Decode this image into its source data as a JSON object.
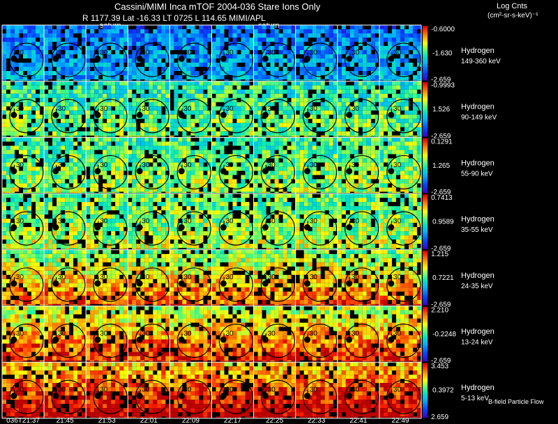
{
  "title": "Cassini/MIMI Inca mTOF  2004-036   Stare   Ions Only",
  "subtitle": "R        1177.39 Lat -16.33 LT 0725 L          114.65  MIMI/APL",
  "saturn_label": "saturn",
  "units_title": "Log Cnts",
  "units": "(cm²-sr-s-keV)⁻¹",
  "footer_note": "B-field Particle Flow",
  "chart_data": {
    "type": "heatmap",
    "description_rows": "energy channels",
    "time_labels": [
      "036T21:37",
      "21:45",
      "21:53",
      "22:01",
      "22:09",
      "22:17",
      "22:25",
      "22:33",
      "22:41",
      "22:49"
    ],
    "contour_label": "30",
    "rows": [
      {
        "species": "Hydrogen",
        "energy": "149-360 keV",
        "cmax": "-0.6000",
        "cmid": "-1.630",
        "cmin": "-2.659",
        "level": 0.22
      },
      {
        "species": "Hydrogen",
        "energy": "90-149 keV",
        "cmax": "-0.9993",
        "cmid": "1.526",
        "cmin": "-2.659",
        "level": 0.46
      },
      {
        "species": "Hydrogen",
        "energy": "55-90 keV",
        "cmax": "0.1291",
        "cmid": "1.265",
        "cmin": "-2.659",
        "level": 0.5
      },
      {
        "species": "Hydrogen",
        "energy": "35-55 keV",
        "cmax": "0.7413",
        "cmid": "0.9589",
        "cmin": "-2.659",
        "level": 0.53
      },
      {
        "species": "Hydrogen",
        "energy": "24-35 keV",
        "cmax": "1.215",
        "cmid": "0.7221",
        "cmin": "-2.659",
        "level": 0.56
      },
      {
        "species": "Hydrogen",
        "energy": "13-24 keV",
        "cmax": "2.210",
        "cmid": "-0.2248",
        "cmin": "-2.659",
        "level": 0.62
      },
      {
        "species": "Hydrogen",
        "energy": "5-13 keV",
        "cmax": "3.453",
        "cmid": "0.3972",
        "cmin": "2.659",
        "level": 0.74
      }
    ]
  }
}
